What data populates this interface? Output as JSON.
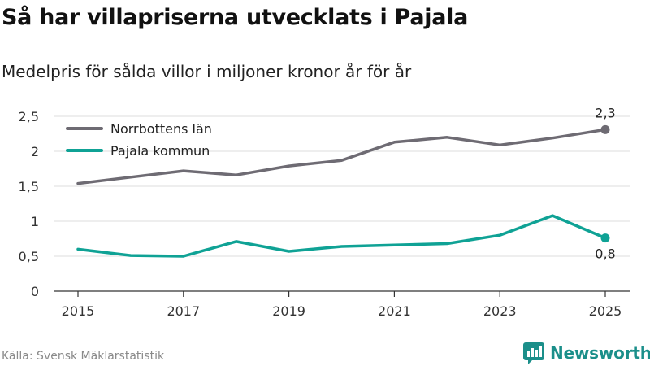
{
  "title": "Så har villapriserna utvecklats i Pajala",
  "subtitle": "Medelpris för sålda villor i miljoner kronor år för år",
  "source": "Källa: Svensk Mäklarstatistik",
  "brand": "Newsworthy",
  "colors": {
    "norrbotten": "#6e6b73",
    "pajala": "#0fa295",
    "grid": "#dddddd",
    "axis": "#333333",
    "brand": "#1b8f8a"
  },
  "chart_data": {
    "type": "line",
    "title": "Så har villapriserna utvecklats i Pajala",
    "subtitle": "Medelpris för sålda villor i miljoner kronor år för år",
    "xlabel": "",
    "ylabel": "",
    "x": [
      2015,
      2016,
      2017,
      2018,
      2019,
      2020,
      2021,
      2022,
      2023,
      2024,
      2025
    ],
    "x_ticks": [
      "2015",
      "2017",
      "2019",
      "2021",
      "2023",
      "2025"
    ],
    "y_ticks": [
      "0",
      "0,5",
      "1",
      "1,5",
      "2",
      "2,5"
    ],
    "y_tick_values": [
      0,
      0.5,
      1,
      1.5,
      2,
      2.5
    ],
    "ylim": [
      0,
      2.5
    ],
    "grid": true,
    "legend_position": "top-left",
    "series": [
      {
        "name": "Norrbottens län",
        "values": [
          1.54,
          1.63,
          1.72,
          1.66,
          1.79,
          1.87,
          2.13,
          2.2,
          2.09,
          2.19,
          2.31
        ],
        "end_label": "2,3",
        "label_position": "above"
      },
      {
        "name": "Pajala kommun",
        "values": [
          0.6,
          0.51,
          0.5,
          0.71,
          0.57,
          0.64,
          0.66,
          0.68,
          0.8,
          1.08,
          0.76
        ],
        "end_label": "0,8",
        "label_position": "below"
      }
    ]
  }
}
